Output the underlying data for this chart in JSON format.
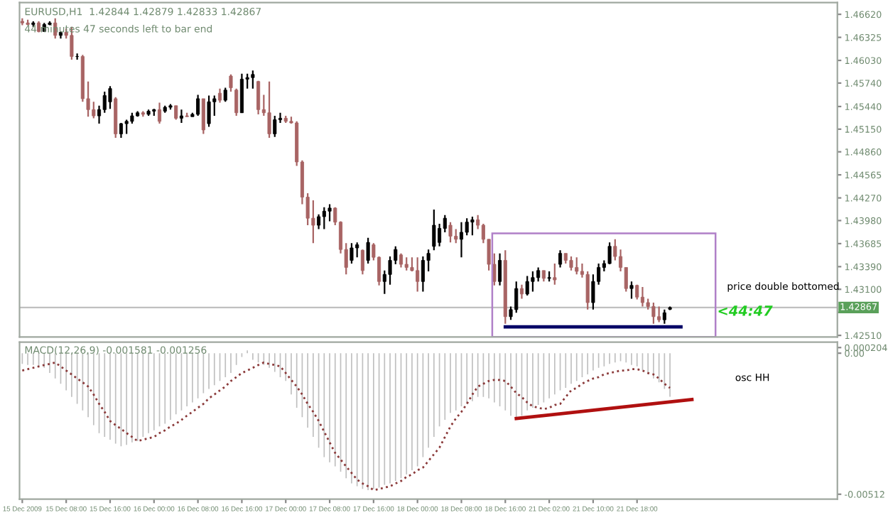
{
  "chart_data": [
    {
      "type": "candlestick",
      "title": "EURUSD,H1  1.42844 1.42879 1.42833 1.42867",
      "annotations": [
        "44 minutes 47 seconds left to bar end",
        "price double bottomed",
        "<44:47"
      ],
      "categories": [
        null,
        null,
        null,
        null,
        null,
        null,
        null,
        null,
        null,
        null,
        null,
        null,
        null,
        null,
        null,
        null,
        null,
        null,
        null,
        null,
        null,
        null,
        null,
        null,
        null,
        null,
        null,
        null,
        null,
        null,
        null,
        null,
        null,
        null,
        null,
        null,
        null,
        null,
        null,
        null,
        null,
        null,
        null,
        null,
        null,
        null,
        null,
        null,
        null,
        null,
        null,
        null,
        null,
        null,
        null,
        null,
        null,
        null,
        null,
        null,
        null,
        null,
        null,
        null,
        null,
        null,
        null,
        null,
        null,
        null,
        null,
        null,
        null,
        null,
        null,
        null,
        null,
        null,
        null,
        null,
        null,
        null,
        null,
        null,
        null,
        null,
        null,
        null,
        null,
        null,
        null,
        null,
        null,
        null,
        null,
        null,
        null,
        null,
        null,
        null,
        null,
        null,
        null,
        null,
        null,
        null,
        null,
        null,
        null,
        null,
        null,
        null,
        null,
        null,
        null,
        null,
        null,
        null,
        null,
        null,
        null,
        null,
        null,
        null,
        null,
        null,
        null,
        null,
        null,
        null,
        null,
        null,
        null,
        null,
        null,
        null,
        null,
        null,
        null,
        null,
        null,
        null,
        null,
        null,
        null,
        null,
        null,
        null,
        null
      ],
      "ohlc": [
        [
          1.4653,
          1.4657,
          1.4648,
          1.4651
        ],
        [
          1.4651,
          1.4655,
          1.4648,
          1.4649
        ],
        [
          1.4649,
          1.4653,
          1.4646,
          1.4651
        ],
        [
          1.4651,
          1.4653,
          1.4639,
          1.464
        ],
        [
          1.464,
          1.4651,
          1.464,
          1.4649
        ],
        [
          1.4649,
          1.4653,
          1.4648,
          1.4651
        ],
        [
          1.4651,
          1.4657,
          1.4631,
          1.4635
        ],
        [
          1.4635,
          1.464,
          1.4631,
          1.4639
        ],
        [
          1.4639,
          1.4644,
          1.4631,
          1.4635
        ],
        [
          1.4635,
          1.4646,
          1.4604,
          1.4608
        ],
        [
          1.4608,
          1.4612,
          1.4604,
          1.4608
        ],
        [
          1.4608,
          1.461,
          1.455,
          1.4554
        ],
        [
          1.4554,
          1.4576,
          1.4531,
          1.454
        ],
        [
          1.454,
          1.455,
          1.4529,
          1.4532
        ],
        [
          1.4532,
          1.4545,
          1.4522,
          1.454
        ],
        [
          1.454,
          1.4563,
          1.4536,
          1.4558
        ],
        [
          1.455,
          1.457,
          1.4541,
          1.4567
        ],
        [
          1.4554,
          1.4556,
          1.4504,
          1.4509
        ],
        [
          1.4509,
          1.4523,
          1.4504,
          1.4522
        ],
        [
          1.4522,
          1.4527,
          1.4509,
          1.4525
        ],
        [
          1.4525,
          1.4536,
          1.4522,
          1.4532
        ],
        [
          1.4532,
          1.4538,
          1.4531,
          1.4536
        ],
        [
          1.4536,
          1.4538,
          1.4531,
          1.4534
        ],
        [
          1.4534,
          1.454,
          1.4532,
          1.4538
        ],
        [
          1.4538,
          1.4541,
          1.4532,
          1.454
        ],
        [
          1.454,
          1.4549,
          1.4522,
          1.4525
        ],
        [
          1.4538,
          1.4545,
          1.4536,
          1.4543
        ],
        [
          1.4543,
          1.4547,
          1.454,
          1.4545
        ],
        [
          1.4545,
          1.4545,
          1.4527,
          1.4529
        ],
        [
          1.4529,
          1.454,
          1.4523,
          1.4532
        ],
        [
          1.4532,
          1.4536,
          1.4531,
          1.4531
        ],
        [
          1.4531,
          1.4536,
          1.4531,
          1.4534
        ],
        [
          1.4534,
          1.4559,
          1.4532,
          1.4554
        ],
        [
          1.4554,
          1.4554,
          1.4509,
          1.4514
        ],
        [
          1.4522,
          1.4558,
          1.4518,
          1.455
        ],
        [
          1.455,
          1.4558,
          1.4532,
          1.4554
        ],
        [
          1.4561,
          1.4567,
          1.4549,
          1.4552
        ],
        [
          1.4552,
          1.4568,
          1.455,
          1.4565
        ],
        [
          1.4583,
          1.4585,
          1.4563,
          1.4568
        ],
        [
          1.4565,
          1.4567,
          1.4532,
          1.4536
        ],
        [
          1.4536,
          1.4586,
          1.4536,
          1.4579
        ],
        [
          1.4579,
          1.4586,
          1.4567,
          1.4581
        ],
        [
          1.4581,
          1.459,
          1.4567,
          1.4585
        ],
        [
          1.4576,
          1.4577,
          1.4534,
          1.454
        ],
        [
          1.454,
          1.4559,
          1.4532,
          1.4536
        ],
        [
          1.4536,
          1.4576,
          1.4504,
          1.4509
        ],
        [
          1.4509,
          1.4532,
          1.4505,
          1.4527
        ],
        [
          1.4527,
          1.4536,
          1.4523,
          1.4529
        ],
        [
          1.4529,
          1.4532,
          1.4523,
          1.4525
        ],
        [
          1.4525,
          1.4531,
          1.4522,
          1.4523
        ],
        [
          1.4523,
          1.4525,
          1.4468,
          1.4473
        ],
        [
          1.4473,
          1.4475,
          1.4419,
          1.4428
        ],
        [
          1.4428,
          1.4433,
          1.4392,
          1.4401
        ],
        [
          1.4401,
          1.4424,
          1.4369,
          1.4392
        ],
        [
          1.4392,
          1.4406,
          1.4387,
          1.4403
        ],
        [
          1.4403,
          1.4415,
          1.4387,
          1.441
        ],
        [
          1.441,
          1.4419,
          1.4397,
          1.4414
        ],
        [
          1.4414,
          1.4415,
          1.4392,
          1.4396
        ],
        [
          1.4396,
          1.4397,
          1.4356,
          1.4361
        ],
        [
          1.4361,
          1.4369,
          1.4329,
          1.4338
        ],
        [
          1.4347,
          1.4369,
          1.4343,
          1.4363
        ],
        [
          1.4363,
          1.437,
          1.4351,
          1.4367
        ],
        [
          1.436,
          1.4361,
          1.4329,
          1.4334
        ],
        [
          1.4347,
          1.4376,
          1.4343,
          1.437
        ],
        [
          1.4367,
          1.4369,
          1.4347,
          1.4351
        ],
        [
          1.4351,
          1.4352,
          1.4315,
          1.432
        ],
        [
          1.432,
          1.4334,
          1.4304,
          1.4329
        ],
        [
          1.4329,
          1.4352,
          1.4316,
          1.4347
        ],
        [
          1.4347,
          1.4365,
          1.4342,
          1.4361
        ],
        [
          1.4354,
          1.4356,
          1.4338,
          1.4342
        ],
        [
          1.4342,
          1.4351,
          1.4334,
          1.4338
        ],
        [
          1.4338,
          1.4351,
          1.4333,
          1.4334
        ],
        [
          1.4334,
          1.4351,
          1.4307,
          1.432
        ],
        [
          1.432,
          1.4352,
          1.4307,
          1.4347
        ],
        [
          1.4347,
          1.4361,
          1.4333,
          1.4356
        ],
        [
          1.4365,
          1.4412,
          1.436,
          1.4392
        ],
        [
          1.437,
          1.4394,
          1.4365,
          1.4388
        ],
        [
          1.4388,
          1.4405,
          1.4383,
          1.4401
        ],
        [
          1.4392,
          1.4396,
          1.437,
          1.4378
        ],
        [
          1.4378,
          1.4387,
          1.4369,
          1.4374
        ],
        [
          1.4374,
          1.4396,
          1.4351,
          1.4383
        ],
        [
          1.4383,
          1.4401,
          1.4379,
          1.4396
        ],
        [
          1.4396,
          1.4403,
          1.4379,
          1.4399
        ],
        [
          1.4399,
          1.4405,
          1.4387,
          1.4392
        ],
        [
          1.4392,
          1.4394,
          1.4369,
          1.4374
        ],
        [
          1.4374,
          1.4374,
          1.4334,
          1.4342
        ],
        [
          1.4342,
          1.4356,
          1.4315,
          1.432
        ],
        [
          1.432,
          1.4356,
          1.4315,
          1.4347
        ],
        [
          1.4347,
          1.436,
          1.4266,
          1.4275
        ],
        [
          1.4275,
          1.4288,
          1.4271,
          1.4284
        ],
        [
          1.4284,
          1.432,
          1.428,
          1.4311
        ],
        [
          1.4311,
          1.4316,
          1.4298,
          1.4304
        ],
        [
          1.4304,
          1.4327,
          1.4302,
          1.432
        ],
        [
          1.432,
          1.4333,
          1.4307,
          1.4325
        ],
        [
          1.4325,
          1.4338,
          1.432,
          1.4334
        ],
        [
          1.4334,
          1.4334,
          1.432,
          1.4324
        ],
        [
          1.4324,
          1.4333,
          1.432,
          1.4325
        ],
        [
          1.4325,
          1.4343,
          1.4316,
          1.4322
        ],
        [
          1.4342,
          1.436,
          1.4338,
          1.4356
        ],
        [
          1.4356,
          1.4356,
          1.4343,
          1.4347
        ],
        [
          1.4347,
          1.4352,
          1.4334,
          1.4338
        ],
        [
          1.4338,
          1.4351,
          1.4329,
          1.4333
        ],
        [
          1.4333,
          1.4343,
          1.4325,
          1.4329
        ],
        [
          1.4329,
          1.4333,
          1.4284,
          1.4293
        ],
        [
          1.4293,
          1.4329,
          1.4284,
          1.432
        ],
        [
          1.432,
          1.4343,
          1.4316,
          1.4338
        ],
        [
          1.4338,
          1.4347,
          1.4333,
          1.4343
        ],
        [
          1.4343,
          1.437,
          1.4342,
          1.4365
        ],
        [
          1.4365,
          1.4374,
          1.4347,
          1.4352
        ],
        [
          1.4352,
          1.4361,
          1.4333,
          1.4338
        ],
        [
          1.4338,
          1.4338,
          1.4307,
          1.4311
        ],
        [
          1.4311,
          1.432,
          1.4298,
          1.4315
        ],
        [
          1.4315,
          1.4316,
          1.4297,
          1.43
        ],
        [
          1.43,
          1.4313,
          1.4288,
          1.4293
        ],
        [
          1.4293,
          1.4298,
          1.4284,
          1.4288
        ],
        [
          1.4288,
          1.4293,
          1.4266,
          1.4275
        ],
        [
          1.4275,
          1.4288,
          1.4268,
          1.4271
        ],
        [
          1.4271,
          1.4284,
          1.4266,
          1.428
        ],
        [
          1.42844,
          1.42879,
          1.42833,
          1.42867
        ],
        null,
        null,
        null,
        null,
        null,
        null,
        null,
        null,
        null,
        null,
        null,
        null,
        null,
        null,
        null,
        null,
        null,
        null,
        null,
        null,
        null,
        null,
        null,
        null,
        null,
        null,
        null,
        null,
        null,
        null
      ],
      "series": [
        {
          "type": "line",
          "color": "#000066",
          "values": [
            null,
            null,
            null,
            null,
            null,
            null,
            null,
            null,
            null,
            null,
            null,
            null,
            null,
            null,
            null,
            null,
            null,
            null,
            null,
            null,
            null,
            null,
            null,
            null,
            null,
            null,
            null,
            null,
            null,
            null,
            null,
            null,
            null,
            null,
            null,
            null,
            null,
            null,
            null,
            null,
            null,
            null,
            null,
            null,
            null,
            null,
            null,
            null,
            null,
            null,
            null,
            null,
            null,
            null,
            null,
            null,
            null,
            null,
            null,
            null,
            null,
            null,
            null,
            null,
            null,
            null,
            null,
            null,
            null,
            null,
            null,
            null,
            null,
            null,
            null,
            null,
            null,
            null,
            null,
            null,
            null,
            null,
            null,
            null,
            null,
            null,
            null,
            null,
            1.4262,
            null,
            null,
            null,
            null,
            null,
            null,
            null,
            null,
            null,
            null,
            null,
            null,
            null,
            null,
            null,
            null,
            null,
            null,
            null,
            null,
            null,
            null,
            null,
            null,
            null,
            null,
            null,
            null,
            null,
            null,
            null,
            1.4262,
            null,
            null,
            null,
            null,
            null,
            null,
            null,
            null,
            null,
            null,
            null,
            null,
            null,
            null,
            null,
            null,
            null,
            null,
            null,
            null,
            null,
            null,
            null,
            null,
            null,
            null,
            null,
            null
          ]
        }
      ],
      "colors": [
        "#a86464",
        "#a86464",
        "#000000",
        "#a86464",
        "#000000",
        "#000000",
        "#a86464",
        "#000000",
        "#a86464",
        "#a86464",
        "#000000",
        "#a86464",
        "#a86464",
        "#a86464",
        "#000000",
        "#000000",
        "#000000",
        "#a86464",
        "#000000",
        "#000000",
        "#000000",
        "#000000",
        "#a86464",
        "#000000",
        "#000000",
        "#a86464",
        "#000000",
        "#000000",
        "#a86464",
        "#000000",
        "#a86464",
        "#000000",
        "#000000",
        "#a86464",
        "#000000",
        "#000000",
        "#a86464",
        "#000000",
        "#a86464",
        "#a86464",
        "#000000",
        "#000000",
        "#000000",
        "#a86464",
        "#a86464",
        "#a86464",
        "#000000",
        "#000000",
        "#a86464",
        "#a86464",
        "#a86464",
        "#a86464",
        "#a86464",
        "#a86464",
        "#000000",
        "#000000",
        "#000000",
        "#a86464",
        "#a86464",
        "#a86464",
        "#000000",
        "#000000",
        "#a86464",
        "#000000",
        "#a86464",
        "#a86464",
        "#000000",
        "#000000",
        "#000000",
        "#a86464",
        "#a86464",
        "#a86464",
        "#a86464",
        "#000000",
        "#000000",
        "#000000",
        "#000000",
        "#000000",
        "#a86464",
        "#a86464",
        "#000000",
        "#000000",
        "#000000",
        "#a86464",
        "#a86464",
        "#a86464",
        "#a86464",
        "#000000",
        "#a86464",
        "#000000",
        "#000000",
        "#a86464",
        "#000000",
        "#000000",
        "#000000",
        "#a86464",
        "#000000",
        "#a86464",
        "#000000",
        "#a86464",
        "#a86464",
        "#a86464",
        "#a86464",
        "#a86464",
        "#000000",
        "#000000",
        "#000000",
        "#000000",
        "#a86464",
        "#a86464",
        "#a86464",
        "#000000",
        "#a86464",
        "#a86464",
        "#a86464",
        "#a86464",
        "#a86464",
        "#000000",
        "#000000",
        null,
        null,
        null,
        null,
        null,
        null,
        null,
        null,
        null,
        null,
        null,
        null,
        null,
        null,
        null,
        null,
        null,
        null,
        null,
        null,
        null,
        null,
        null,
        null,
        null,
        null,
        null,
        null,
        null,
        null
      ],
      "ylim": [
        1.4249,
        1.4677
      ],
      "yticks": [
        {
          "value": 1.4662,
          "label": "1.46620"
        },
        {
          "value": 1.46325,
          "label": "1.46325"
        },
        {
          "value": 1.4603,
          "label": "1.46030"
        },
        {
          "value": 1.4574,
          "label": "1.45740"
        },
        {
          "value": 1.4544,
          "label": "1.45440"
        },
        {
          "value": 1.4515,
          "label": "1.45150"
        },
        {
          "value": 1.4486,
          "label": "1.44860"
        },
        {
          "value": 1.44565,
          "label": "1.44565"
        },
        {
          "value": 1.4427,
          "label": "1.44270"
        },
        {
          "value": 1.4398,
          "label": "1.43980"
        },
        {
          "value": 1.43685,
          "label": "1.43685"
        },
        {
          "value": 1.4339,
          "label": "1.43390"
        },
        {
          "value": 1.431,
          "label": "1.43100"
        },
        {
          "value": 1.42805,
          "label": null
        },
        {
          "value": 1.4251,
          "label": "1.42510"
        }
      ],
      "ref_lines": [
        {
          "axis": "y",
          "value": 1.42867,
          "label": "1.42867",
          "color": "#c0c0c0"
        }
      ],
      "tick_labels": "y",
      "grid": false,
      "legend": false
    },
    {
      "type": "bar",
      "title": "MACD(12,26,9) -0.001581 -0.001256",
      "annotations": [
        "osc HH"
      ],
      "categories": [
        "15 Dec 2009",
        null,
        null,
        null,
        null,
        null,
        null,
        null,
        "15 Dec 08:00",
        null,
        null,
        null,
        null,
        null,
        null,
        null,
        "15 Dec 16:00",
        null,
        null,
        null,
        null,
        null,
        null,
        null,
        "16 Dec 00:00",
        null,
        null,
        null,
        null,
        null,
        null,
        null,
        "16 Dec 08:00",
        null,
        null,
        null,
        null,
        null,
        null,
        null,
        "16 Dec 16:00",
        null,
        null,
        null,
        null,
        null,
        null,
        null,
        "17 Dec 00:00",
        null,
        null,
        null,
        null,
        null,
        null,
        null,
        "17 Dec 08:00",
        null,
        null,
        null,
        null,
        null,
        null,
        null,
        "17 Dec 16:00",
        null,
        null,
        null,
        null,
        null,
        null,
        null,
        "18 Dec 00:00",
        null,
        null,
        null,
        null,
        null,
        null,
        null,
        "18 Dec 08:00",
        null,
        null,
        null,
        null,
        null,
        null,
        null,
        "18 Dec 16:00",
        null,
        null,
        null,
        null,
        null,
        null,
        null,
        "21 Dec 02:00",
        null,
        null,
        null,
        null,
        null,
        null,
        null,
        "21 Dec 10:00",
        null,
        null,
        null,
        null,
        null,
        null,
        null,
        "21 Dec 18:00",
        null,
        null,
        null,
        null,
        null,
        null,
        null,
        null,
        null,
        null,
        null,
        null,
        null,
        null,
        null,
        null,
        null,
        null,
        null,
        null,
        null,
        null,
        null,
        null,
        null,
        null,
        null,
        null,
        null,
        null,
        null,
        null,
        null,
        null,
        null,
        null
      ],
      "series": [
        {
          "type": "bar",
          "color": "#c0c0c0",
          "values": [
            -0.00039,
            -0.00043,
            -0.00043,
            -0.00048,
            -0.00053,
            -0.00072,
            -0.00092,
            -0.00111,
            -0.00135,
            -0.00159,
            -0.00184,
            -0.00208,
            -0.00232,
            -0.00261,
            -0.0029,
            -0.00304,
            -0.00314,
            -0.00328,
            -0.00338,
            -0.00333,
            -0.00324,
            -0.00319,
            -0.00304,
            -0.0029,
            -0.0028,
            -0.00266,
            -0.00256,
            -0.00242,
            -0.00222,
            -0.00208,
            -0.00193,
            -0.00179,
            -0.00164,
            -0.00145,
            -0.0013,
            -0.00116,
            -0.00101,
            -0.00087,
            -0.00072,
            -0.00043,
            -0.00014,
            0.0001,
            -0.00024,
            -0.00034,
            -0.00043,
            -0.00053,
            -0.00068,
            -0.00087,
            -0.00101,
            -0.0015,
            -0.00198,
            -0.00232,
            -0.0027,
            -0.00304,
            -0.00343,
            -0.00377,
            -0.00396,
            -0.00411,
            -0.0043,
            -0.00454,
            -0.00473,
            -0.00483,
            -0.00493,
            -0.00497,
            -0.00493,
            -0.00488,
            -0.00478,
            -0.00473,
            -0.00464,
            -0.00454,
            -0.0044,
            -0.00425,
            -0.00411,
            -0.00377,
            -0.00343,
            -0.00304,
            -0.00266,
            -0.00242,
            -0.00217,
            -0.00208,
            -0.00193,
            -0.00184,
            -0.00174,
            -0.00159,
            -0.00159,
            -0.00164,
            -0.00179,
            -0.00193,
            -0.00208,
            -0.00227,
            -0.00242,
            -0.00227,
            -0.00208,
            -0.00198,
            -0.00188,
            -0.00179,
            -0.00164,
            -0.0015,
            -0.00135,
            -0.00126,
            -0.00111,
            -0.00101,
            -0.00087,
            -0.00077,
            -0.00063,
            -0.00053,
            -0.00048,
            -0.00039,
            -0.00034,
            -0.00029,
            -0.00034,
            -0.00043,
            -0.00048,
            -0.00063,
            -0.00077,
            -0.00092,
            -0.00106,
            -0.0013,
            -0.00158,
            null,
            null,
            null,
            null,
            null,
            null,
            null,
            null,
            null,
            null,
            null,
            null,
            null,
            null,
            null,
            null,
            null,
            null,
            null,
            null,
            null,
            null,
            null,
            null,
            null,
            null,
            null,
            null,
            null,
            null
          ]
        },
        {
          "type": "line",
          "color": "#8b3a3a",
          "line_style": "dotted",
          "values": [
            -0.00063,
            -0.00058,
            -0.00053,
            -0.00048,
            -0.00043,
            -0.00039,
            -0.00034,
            -0.00048,
            -0.00063,
            -0.00077,
            -0.00092,
            -0.00106,
            -0.00121,
            -0.0015,
            -0.00184,
            -0.00213,
            -0.00246,
            -0.00261,
            -0.00275,
            -0.0029,
            -0.00304,
            -0.00319,
            -0.00314,
            -0.00309,
            -0.00304,
            -0.0029,
            -0.0028,
            -0.00266,
            -0.00256,
            -0.00242,
            -0.00227,
            -0.00213,
            -0.00198,
            -0.00184,
            -0.00164,
            -0.0015,
            -0.00135,
            -0.00121,
            -0.00101,
            -0.00087,
            -0.00072,
            -0.00063,
            -0.00053,
            -0.00043,
            -0.00034,
            -0.00039,
            -0.00043,
            -0.00048,
            -0.00072,
            -0.00097,
            -0.00121,
            -0.0015,
            -0.00184,
            -0.00213,
            -0.00246,
            -0.00285,
            -0.00324,
            -0.00362,
            -0.00386,
            -0.00411,
            -0.00435,
            -0.00459,
            -0.00473,
            -0.00483,
            -0.00497,
            -0.00493,
            -0.00488,
            -0.00483,
            -0.00473,
            -0.00464,
            -0.00449,
            -0.0044,
            -0.00425,
            -0.00415,
            -0.00391,
            -0.00367,
            -0.00343,
            -0.00304,
            -0.00266,
            -0.00237,
            -0.00213,
            -0.00184,
            -0.0015,
            -0.00121,
            -0.00111,
            -0.00101,
            -0.00097,
            -0.00097,
            -0.00101,
            -0.00121,
            -0.00145,
            -0.00159,
            -0.00179,
            -0.00193,
            -0.00198,
            -0.00203,
            -0.00198,
            -0.00188,
            -0.00184,
            -0.00159,
            -0.00135,
            -0.00126,
            -0.00111,
            -0.00101,
            -0.00092,
            -0.00087,
            -0.00077,
            -0.00072,
            -0.00068,
            -0.00063,
            -0.00063,
            -0.00058,
            -0.00058,
            -0.00063,
            -0.00072,
            -0.00077,
            -0.00092,
            -0.00111,
            -0.00126,
            null,
            null,
            null,
            null,
            null,
            null,
            null,
            null,
            null,
            null,
            null,
            null,
            null,
            null,
            null,
            null,
            null,
            null,
            null,
            null,
            null,
            null,
            null,
            null,
            null,
            null,
            null,
            null,
            null,
            null
          ]
        },
        {
          "type": "line",
          "color": "#b01010",
          "values": [
            null,
            null,
            null,
            null,
            null,
            null,
            null,
            null,
            null,
            null,
            null,
            null,
            null,
            null,
            null,
            null,
            null,
            null,
            null,
            null,
            null,
            null,
            null,
            null,
            null,
            null,
            null,
            null,
            null,
            null,
            null,
            null,
            null,
            null,
            null,
            null,
            null,
            null,
            null,
            null,
            null,
            null,
            null,
            null,
            null,
            null,
            null,
            null,
            null,
            null,
            null,
            null,
            null,
            null,
            null,
            null,
            null,
            null,
            null,
            null,
            null,
            null,
            null,
            null,
            null,
            null,
            null,
            null,
            null,
            null,
            null,
            null,
            null,
            null,
            null,
            null,
            null,
            null,
            null,
            null,
            null,
            null,
            null,
            null,
            null,
            null,
            null,
            null,
            null,
            null,
            -0.00237,
            null,
            null,
            null,
            null,
            null,
            null,
            null,
            null,
            null,
            null,
            null,
            null,
            null,
            null,
            null,
            null,
            null,
            null,
            null,
            null,
            null,
            null,
            null,
            null,
            null,
            null,
            null,
            null,
            null,
            null,
            null,
            -0.00168,
            null,
            null,
            null,
            null,
            null,
            null,
            null,
            null,
            null,
            null,
            null,
            null,
            null,
            null,
            null,
            null,
            null,
            null,
            null,
            null,
            null,
            null,
            null,
            null,
            null,
            null
          ]
        }
      ],
      "ylim": [
        -0.0053,
        0.0004
      ],
      "yticks": [
        {
          "value": 0.000204,
          "label": "0.000204"
        },
        {
          "value": 0,
          "label": "0.00"
        },
        {
          "value": -0.00512,
          "label": "-0.00512"
        }
      ],
      "grid": false,
      "legend": false
    }
  ]
}
